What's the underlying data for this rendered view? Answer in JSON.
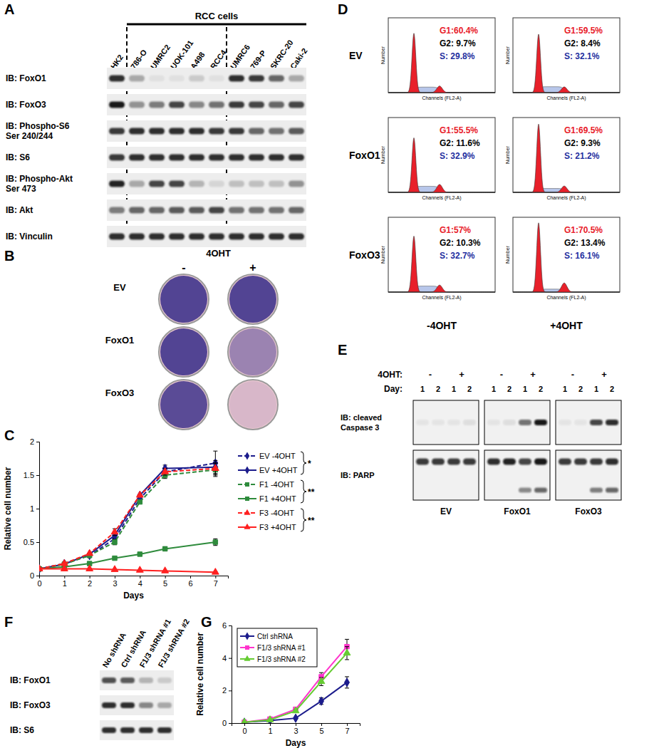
{
  "panel_labels": [
    "A",
    "B",
    "C",
    "D",
    "E",
    "F",
    "G"
  ],
  "blot_a": {
    "header": "RCC cells",
    "lane_groups": [
      [
        "HK2"
      ],
      [
        "786-O",
        "UMRC2",
        "UOK-101",
        "A498",
        "RCC4"
      ],
      [
        "UMRC6",
        "769-P",
        "SKRC-20",
        "Caki-2"
      ]
    ],
    "rows": [
      {
        "label": [
          "IB: FoxO1"
        ],
        "intensities": [
          0.85,
          0.3,
          0.05,
          0.05,
          0.15,
          0.05,
          0.85,
          0.8,
          0.6,
          0.3
        ]
      },
      {
        "label": [
          "IB: FoxO3"
        ],
        "intensities": [
          0.95,
          0.4,
          0.5,
          0.75,
          0.45,
          0.55,
          0.8,
          0.75,
          0.6,
          0.75
        ]
      },
      {
        "label": [
          "IB: Phospho-S6",
          "Ser 240/244"
        ],
        "intensities": [
          0.8,
          0.85,
          0.85,
          0.85,
          0.85,
          0.8,
          0.8,
          0.6,
          0.55,
          0.65
        ]
      },
      {
        "label": [
          "IB: S6"
        ],
        "intensities": [
          0.8,
          0.85,
          0.85,
          0.85,
          0.85,
          0.85,
          0.85,
          0.85,
          0.85,
          0.85
        ]
      },
      {
        "label": [
          "IB: Phospho-Akt",
          "Ser 473"
        ],
        "intensities": [
          0.9,
          0.3,
          0.75,
          0.75,
          0.25,
          0.1,
          0.2,
          0.2,
          0.2,
          0.4
        ]
      },
      {
        "label": [
          "IB: Akt"
        ],
        "intensities": [
          0.5,
          0.6,
          0.6,
          0.65,
          0.65,
          0.75,
          0.55,
          0.55,
          0.55,
          0.6
        ]
      },
      {
        "label": [
          "IB: Vinculin"
        ],
        "intensities": [
          0.85,
          0.85,
          0.85,
          0.85,
          0.85,
          0.85,
          0.85,
          0.85,
          0.85,
          0.85
        ]
      }
    ]
  },
  "colonies_b": {
    "treatment": "4OHT",
    "conditions": [
      "-",
      "+"
    ],
    "rows": [
      {
        "label": "EV",
        "coverage": [
          0.95,
          0.95
        ]
      },
      {
        "label": "FoxO1",
        "coverage": [
          0.95,
          0.5
        ]
      },
      {
        "label": "FoxO3",
        "coverage": [
          0.9,
          0.12
        ]
      }
    ]
  },
  "chart_data": [
    {
      "type": "line",
      "x_label": "Days",
      "y_label": "Relative cell number",
      "x": [
        0,
        1,
        2,
        3,
        4,
        5,
        7
      ],
      "xlim": [
        0,
        7.5
      ],
      "xticks": [
        0,
        1,
        2,
        3,
        4,
        5,
        6,
        7
      ],
      "ylim": [
        0,
        2
      ],
      "yticks": [
        0,
        0.5,
        1,
        1.5,
        2
      ],
      "legend": "right",
      "annotations": [
        "*",
        "**",
        "**"
      ],
      "series": [
        {
          "name": "EV -4OHT",
          "color": "#1c1c8c",
          "line_style": "dashed",
          "marker": "diamond",
          "values": [
            0.1,
            0.18,
            0.3,
            0.55,
            1.15,
            1.55,
            1.68
          ],
          "errors": [
            0,
            0,
            0,
            0.05,
            0,
            0.05,
            0.18
          ]
        },
        {
          "name": "EV +4OHT",
          "color": "#1c1c8c",
          "line_style": "solid",
          "marker": "diamond",
          "values": [
            0.1,
            0.17,
            0.32,
            0.6,
            1.2,
            1.6,
            1.62
          ],
          "errors": [
            0,
            0,
            0,
            0.05,
            0,
            0.05,
            0.1
          ]
        },
        {
          "name": "F1 -4OHT",
          "color": "#2e8b3c",
          "line_style": "dashed",
          "marker": "square",
          "values": [
            0.1,
            0.17,
            0.3,
            0.5,
            1.1,
            1.5,
            1.58
          ],
          "errors": [
            0,
            0,
            0,
            0.04,
            0,
            0.05,
            0.1
          ]
        },
        {
          "name": "F1 +4OHT",
          "color": "#2e8b3c",
          "line_style": "solid",
          "marker": "square",
          "values": [
            0.1,
            0.13,
            0.18,
            0.26,
            0.32,
            0.4,
            0.5
          ],
          "errors": [
            0,
            0,
            0,
            0.02,
            0,
            0.03,
            0.05
          ]
        },
        {
          "name": "F3 -4OHT",
          "color": "#ff2020",
          "line_style": "dashed",
          "marker": "triangle",
          "values": [
            0.1,
            0.18,
            0.33,
            0.65,
            1.2,
            1.55,
            1.6
          ],
          "errors": [
            0,
            0,
            0,
            0.05,
            0,
            0.05,
            0.08
          ]
        },
        {
          "name": "F3 +4OHT",
          "color": "#ff2020",
          "line_style": "solid",
          "marker": "triangle",
          "values": [
            0.1,
            0.1,
            0.1,
            0.09,
            0.08,
            0.07,
            0.05
          ],
          "errors": [
            0,
            0,
            0,
            0,
            0,
            0,
            0.01
          ]
        }
      ]
    },
    {
      "type": "line",
      "x_label": "Days",
      "y_label": "Relative cell number",
      "categories": [
        "0",
        "1",
        "3",
        "5",
        "7"
      ],
      "ylim": [
        0,
        6
      ],
      "yticks": [
        0,
        2,
        4,
        6
      ],
      "legend": "top-left",
      "series": [
        {
          "name": "Ctrl shRNA",
          "color": "#1c1c8c",
          "line_style": "solid",
          "marker": "diamond",
          "values": [
            0.05,
            0.15,
            0.3,
            1.35,
            2.5
          ],
          "errors": [
            0.02,
            0.03,
            0.05,
            0.2,
            0.35
          ]
        },
        {
          "name": "F1/3 shRNA #1",
          "color": "#ff33cc",
          "line_style": "solid",
          "marker": "square",
          "values": [
            0.05,
            0.25,
            0.85,
            2.85,
            4.7
          ],
          "errors": [
            0.02,
            0.03,
            0.08,
            0.25,
            0.45
          ]
        },
        {
          "name": "F1/3 shRNA #2",
          "color": "#66cc33",
          "line_style": "solid",
          "marker": "triangle",
          "values": [
            0.05,
            0.2,
            0.75,
            2.55,
            4.3
          ],
          "errors": [
            0.02,
            0.03,
            0.08,
            0.25,
            0.4
          ]
        }
      ]
    }
  ],
  "flow_d": {
    "rows": [
      "EV",
      "FoxO1",
      "FoxO3"
    ],
    "columns": [
      "-4OHT",
      "+4OHT"
    ],
    "x_label": "Channels (FL2-A)",
    "y_label": "Number",
    "cells": [
      [
        {
          "g1": {
            "value": 60.4,
            "label": "G1:60.4%"
          },
          "g2": {
            "value": 9.7,
            "label": "G2: 9.7%"
          },
          "s": {
            "value": 29.8,
            "label": "S: 29.8%"
          }
        },
        {
          "g1": {
            "value": 59.5,
            "label": "G1:59.5%"
          },
          "g2": {
            "value": 8.4,
            "label": "G2: 8.4%"
          },
          "s": {
            "value": 32.1,
            "label": "S: 32.1%"
          }
        }
      ],
      [
        {
          "g1": {
            "value": 55.5,
            "label": "G1:55.5%"
          },
          "g2": {
            "value": 11.6,
            "label": "G2: 11.6%"
          },
          "s": {
            "value": 32.9,
            "label": "S: 32.9%"
          }
        },
        {
          "g1": {
            "value": 69.5,
            "label": "G1:69.5%"
          },
          "g2": {
            "value": 9.3,
            "label": "G2: 9.3%"
          },
          "s": {
            "value": 21.2,
            "label": "S: 21.2%"
          }
        }
      ],
      [
        {
          "g1": {
            "value": 57,
            "label": "G1:57%"
          },
          "g2": {
            "value": 10.3,
            "label": "G2: 10.3%"
          },
          "s": {
            "value": 32.7,
            "label": "S: 32.7%"
          }
        },
        {
          "g1": {
            "value": 70.5,
            "label": "G1:70.5%"
          },
          "g2": {
            "value": 13.4,
            "label": "G2: 13.4%"
          },
          "s": {
            "value": 16.1,
            "label": "S: 16.1%"
          }
        }
      ]
    ]
  },
  "blot_e": {
    "treatment_label": "4OHT:",
    "day_label": "Day:",
    "treatments": [
      "-",
      "+"
    ],
    "days": [
      1,
      2
    ],
    "row_labels": [
      [
        "IB: cleaved",
        "Caspase 3"
      ],
      [
        "IB: PARP"
      ]
    ],
    "groups": [
      {
        "name": "EV",
        "cleaved_caspase3": [
          0.05,
          0.05,
          0.05,
          0.08
        ],
        "parp": [
          0.8,
          0.8,
          0.8,
          0.8
        ],
        "cleaved_parp": [
          0,
          0,
          0,
          0
        ]
      },
      {
        "name": "FoxO1",
        "cleaved_caspase3": [
          0.05,
          0.08,
          0.55,
          0.95
        ],
        "parp": [
          0.85,
          0.9,
          0.75,
          0.95
        ],
        "cleaved_parp": [
          0,
          0,
          0.45,
          0.6
        ]
      },
      {
        "name": "FoxO3",
        "cleaved_caspase3": [
          0.05,
          0.05,
          0.75,
          0.85
        ],
        "parp": [
          0.8,
          0.8,
          0.8,
          0.85
        ],
        "cleaved_parp": [
          0,
          0,
          0.5,
          0.6
        ]
      }
    ]
  },
  "blot_f": {
    "lanes": [
      "No shRNA",
      "Ctrl shRNA",
      "F1/3 shRNA #1",
      "F1/3 shRNA #2"
    ],
    "rows": [
      {
        "label": "IB: FoxO1",
        "intensities": [
          0.7,
          0.65,
          0.25,
          0.15
        ]
      },
      {
        "label": "IB: FoxO3",
        "intensities": [
          0.85,
          0.85,
          0.45,
          0.3
        ]
      },
      {
        "label": "IB: S6",
        "intensities": [
          0.85,
          0.85,
          0.85,
          0.85
        ]
      }
    ]
  }
}
